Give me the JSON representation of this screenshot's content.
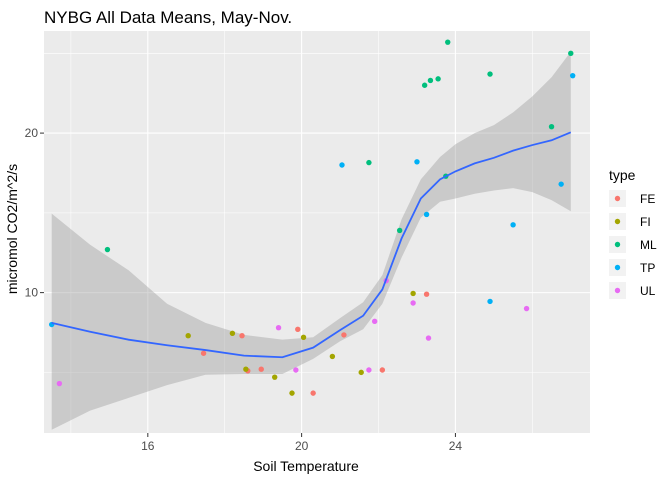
{
  "chart_data": {
    "type": "scatter",
    "title": "NYBG All Data Means, May-Nov.",
    "xlabel": "Soil Temperature",
    "ylabel": "micromol CO2/m^2/s",
    "xlim": [
      13.3,
      27.5
    ],
    "ylim": [
      1.2,
      26.4
    ],
    "x_ticks": [
      16,
      20,
      24
    ],
    "y_ticks": [
      10,
      20
    ],
    "x_tick_labels": [
      "16",
      "20",
      "24"
    ],
    "y_tick_labels": [
      "10",
      "20"
    ],
    "grid": true,
    "legend_title": "type",
    "legend_position": "right",
    "series": [
      {
        "name": "FE",
        "color": "#F8766D",
        "points": [
          [
            17.45,
            6.2
          ],
          [
            18.45,
            7.3
          ],
          [
            18.6,
            5.1
          ],
          [
            18.95,
            5.2
          ],
          [
            19.9,
            7.7
          ],
          [
            20.3,
            3.7
          ],
          [
            21.1,
            7.35
          ],
          [
            22.1,
            5.15
          ],
          [
            23.25,
            9.9
          ]
        ]
      },
      {
        "name": "FI",
        "color": "#A3A500",
        "points": [
          [
            17.05,
            7.3
          ],
          [
            18.2,
            7.45
          ],
          [
            18.55,
            5.2
          ],
          [
            19.3,
            4.7
          ],
          [
            19.75,
            3.7
          ],
          [
            20.05,
            7.2
          ],
          [
            20.8,
            6.0
          ],
          [
            21.55,
            5.0
          ],
          [
            22.9,
            9.95
          ]
        ]
      },
      {
        "name": "ML",
        "color": "#00BF7D",
        "points": [
          [
            14.95,
            12.7
          ],
          [
            21.75,
            18.15
          ],
          [
            22.55,
            13.9
          ],
          [
            23.2,
            23.0
          ],
          [
            23.35,
            23.3
          ],
          [
            23.55,
            23.4
          ],
          [
            23.75,
            17.3
          ],
          [
            23.8,
            25.7
          ],
          [
            24.9,
            23.7
          ],
          [
            26.5,
            20.4
          ],
          [
            27.0,
            25.0
          ]
        ]
      },
      {
        "name": "TP",
        "color": "#00B0F6",
        "points": [
          [
            13.5,
            8.0
          ],
          [
            21.05,
            18.0
          ],
          [
            23.0,
            18.2
          ],
          [
            23.25,
            14.9
          ],
          [
            24.9,
            9.45
          ],
          [
            25.5,
            14.25
          ],
          [
            26.75,
            16.8
          ],
          [
            27.05,
            23.6
          ]
        ]
      },
      {
        "name": "UL",
        "color": "#E76BF3",
        "points": [
          [
            13.7,
            4.3
          ],
          [
            19.4,
            7.8
          ],
          [
            19.85,
            5.15
          ],
          [
            21.75,
            5.15
          ],
          [
            21.9,
            8.2
          ],
          [
            22.2,
            10.75
          ],
          [
            22.9,
            9.35
          ],
          [
            23.3,
            7.15
          ],
          [
            25.85,
            9.0
          ]
        ]
      }
    ],
    "smooth": {
      "color": "#3366FF",
      "points": [
        [
          13.5,
          8.1
        ],
        [
          14.5,
          7.55
        ],
        [
          15.5,
          7.05
        ],
        [
          16.5,
          6.7
        ],
        [
          17.5,
          6.4
        ],
        [
          18.5,
          6.05
        ],
        [
          19.5,
          5.95
        ],
        [
          20.3,
          6.55
        ],
        [
          21.0,
          7.65
        ],
        [
          21.6,
          8.55
        ],
        [
          22.1,
          10.2
        ],
        [
          22.6,
          13.4
        ],
        [
          23.1,
          15.9
        ],
        [
          23.6,
          17.1
        ],
        [
          24.0,
          17.6
        ],
        [
          24.5,
          18.1
        ],
        [
          25.0,
          18.45
        ],
        [
          25.5,
          18.9
        ],
        [
          26.0,
          19.25
        ],
        [
          26.5,
          19.55
        ],
        [
          27.0,
          20.05
        ]
      ],
      "ci_upper": [
        14.95,
        13.0,
        11.4,
        9.3,
        8.1,
        7.35,
        7.05,
        7.2,
        8.4,
        9.4,
        11.1,
        14.6,
        17.1,
        18.5,
        19.3,
        20.0,
        20.5,
        21.3,
        22.3,
        23.5,
        25.1
      ],
      "ci_lower": [
        1.4,
        2.6,
        3.4,
        4.2,
        4.85,
        4.9,
        4.9,
        5.85,
        6.95,
        7.7,
        9.3,
        12.2,
        14.7,
        15.7,
        15.9,
        16.2,
        16.4,
        16.55,
        16.3,
        15.8,
        15.1
      ]
    }
  }
}
